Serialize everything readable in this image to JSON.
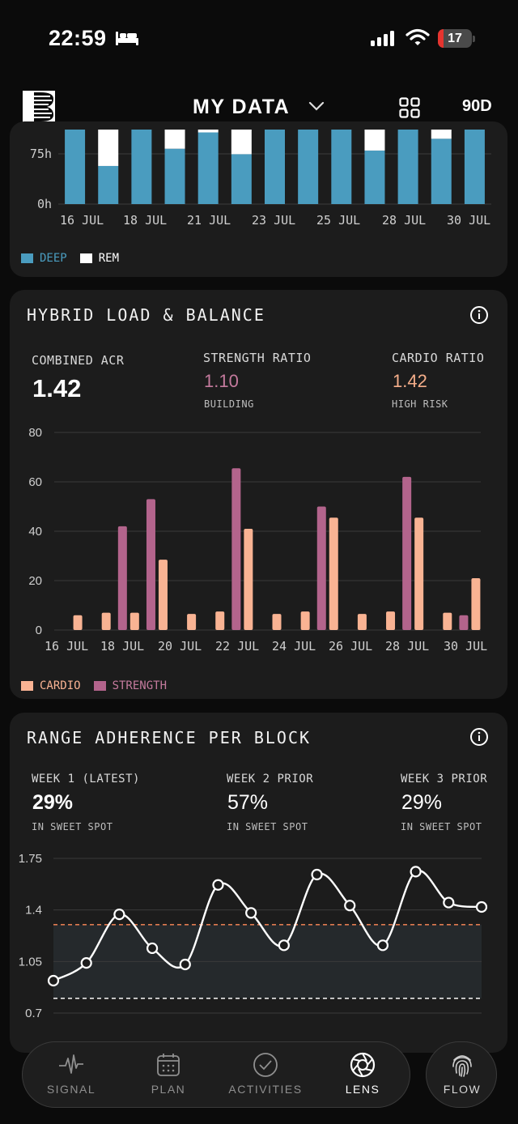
{
  "status": {
    "time": "22:59",
    "battery": "17",
    "battery_level": 0.17
  },
  "header": {
    "title": "MY DATA",
    "range": "90D"
  },
  "sleep": {
    "chart_data": {
      "type": "bar",
      "stacked": true,
      "y_ticks": [
        "75h",
        "0h"
      ],
      "x_labels": [
        "16 JUL",
        "18 JUL",
        "21 JUL",
        "23 JUL",
        "25 JUL",
        "28 JUL",
        "30 JUL"
      ],
      "series": [
        {
          "name": "DEEP",
          "color": "#4a9cbf",
          "values": [
            0.88,
            0.42,
            1.0,
            0.61,
            0.79,
            0.55,
            1.0,
            1.0,
            0.88,
            0.59,
            0.91,
            0.72,
            0.88
          ]
        },
        {
          "name": "REM",
          "color": "#ffffff",
          "values": [
            0.12,
            0.58,
            0.0,
            0.39,
            0.21,
            0.45,
            0.0,
            0.0,
            0.12,
            0.41,
            0.09,
            0.28,
            0.12
          ]
        }
      ]
    }
  },
  "hybrid": {
    "title": "HYBRID LOAD & BALANCE",
    "stats": [
      {
        "label": "COMBINED ACR",
        "value": "1.42",
        "sub": ""
      },
      {
        "label": "STRENGTH RATIO",
        "value": "1.10",
        "sub": "BUILDING"
      },
      {
        "label": "CARDIO RATIO",
        "value": "1.42",
        "sub": "HIGH RISK"
      }
    ],
    "chart_data": {
      "type": "bar",
      "ylim": [
        0,
        80
      ],
      "y_ticks": [
        "80",
        "60",
        "40",
        "20",
        "0"
      ],
      "x_labels": [
        "16 JUL",
        "18 JUL",
        "20 JUL",
        "22 JUL",
        "24 JUL",
        "26 JUL",
        "28 JUL",
        "30 JUL"
      ],
      "categories": [
        "16 JUL",
        "17 JUL",
        "18 JUL",
        "19 JUL",
        "20 JUL",
        "21 JUL",
        "22 JUL",
        "23 JUL",
        "24 JUL",
        "25 JUL",
        "26 JUL",
        "27 JUL",
        "28 JUL",
        "29 JUL",
        "30 JUL"
      ],
      "series": [
        {
          "name": "CARDIO",
          "color": "#f9b393",
          "values": [
            6,
            7,
            7,
            28.5,
            6.5,
            7.5,
            41,
            6.5,
            7.5,
            45.5,
            6.5,
            7.5,
            45.5,
            7,
            21
          ]
        },
        {
          "name": "STRENGTH",
          "color": "#b3648c",
          "values": [
            0,
            0,
            42,
            53,
            0,
            0,
            65.5,
            0,
            0,
            50,
            0,
            0,
            62,
            0,
            6
          ]
        }
      ]
    }
  },
  "adherence": {
    "title": "RANGE ADHERENCE PER BLOCK",
    "stats": [
      {
        "label": "WEEK 1 (LATEST)",
        "value": "29%",
        "sub": "IN SWEET SPOT"
      },
      {
        "label": "WEEK 2 PRIOR",
        "value": "57%",
        "sub": "IN SWEET SPOT"
      },
      {
        "label": "WEEK 3 PRIOR",
        "value": "29%",
        "sub": "IN SWEET SPOT"
      }
    ],
    "chart_data": {
      "type": "line",
      "y_ticks": [
        "1.75",
        "1.4",
        "1.05",
        "0.7"
      ],
      "ylim": [
        0.7,
        1.75
      ],
      "sweet_spot": [
        0.8,
        1.3
      ],
      "values": [
        0.92,
        1.04,
        1.37,
        1.14,
        1.03,
        1.57,
        1.38,
        1.16,
        1.64,
        1.43,
        1.16,
        1.66,
        1.45,
        1.42
      ]
    }
  },
  "tabs": [
    {
      "label": "SIGNAL",
      "icon": "pulse-icon"
    },
    {
      "label": "PLAN",
      "icon": "calendar-icon"
    },
    {
      "label": "ACTIVITIES",
      "icon": "check-circle-icon"
    },
    {
      "label": "LENS",
      "icon": "aperture-icon"
    }
  ],
  "flow": {
    "label": "FLOW",
    "icon": "fingerprint-icon"
  }
}
